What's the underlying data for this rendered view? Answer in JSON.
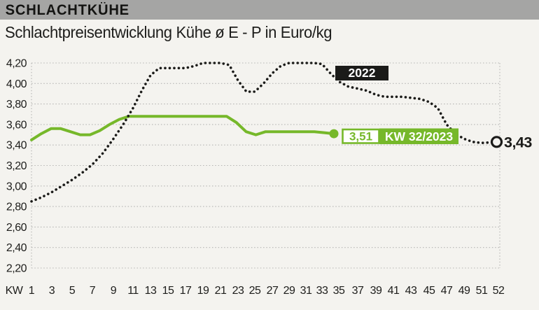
{
  "header": {
    "title": "SCHLACHTKÜHE"
  },
  "subtitle": "Schlachtpreisentwicklung Kühe ø E - P in Euro/kg",
  "colors": {
    "accent_green": "#76b82a",
    "line_black": "#1b1b19",
    "band_gray": "#a5a5a4",
    "background": "#f4f3ef",
    "grid_gray": "#b4b4b2",
    "text": "#1d1d1b"
  },
  "chart_data": {
    "type": "line",
    "title": "Schlachtpreisentwicklung Kühe ø E - P in Euro/kg",
    "xlabel": "KW",
    "ylabel": "Euro/kg",
    "ylim": [
      2.2,
      4.2
    ],
    "grid": true,
    "ytick_labels": [
      "4,20",
      "4,00",
      "3,80",
      "3,60",
      "3,40",
      "3,20",
      "3,00",
      "2,80",
      "2,60",
      "2,40",
      "2,20"
    ],
    "ytick_values": [
      4.2,
      4.0,
      3.8,
      3.6,
      3.4,
      3.2,
      3.0,
      2.8,
      2.6,
      2.4,
      2.2
    ],
    "xaxis_prefix": "KW",
    "xtick_labels": [
      "1",
      "3",
      "5",
      "7",
      "9",
      "11",
      "13",
      "15",
      "17",
      "19",
      "21",
      "23",
      "25",
      "27",
      "29",
      "31",
      "33",
      "35",
      "37",
      "39",
      "41",
      "43",
      "45",
      "47",
      "49",
      "51",
      "52"
    ],
    "xtick_weeks": [
      1,
      3,
      5,
      7,
      9,
      11,
      13,
      15,
      17,
      19,
      21,
      23,
      25,
      27,
      29,
      31,
      33,
      35,
      37,
      39,
      41,
      43,
      45,
      47,
      49,
      51,
      52
    ],
    "series": [
      {
        "name": "2022",
        "style": "dotted",
        "color": "#1b1b19",
        "start_week": 1,
        "values": [
          2.85,
          2.89,
          2.94,
          3.0,
          3.06,
          3.13,
          3.21,
          3.32,
          3.46,
          3.6,
          3.76,
          3.93,
          4.08,
          4.15,
          4.15,
          4.15,
          4.15,
          4.17,
          4.2,
          4.2,
          4.2,
          4.18,
          4.03,
          3.92,
          3.92,
          4.0,
          4.1,
          4.17,
          4.2,
          4.2,
          4.2,
          4.2,
          4.19,
          4.1,
          4.02,
          3.97,
          3.95,
          3.93,
          3.89,
          3.87,
          3.87,
          3.87,
          3.86,
          3.85,
          3.82,
          3.76,
          3.6,
          3.51,
          3.46,
          3.43,
          3.42,
          3.43
        ]
      },
      {
        "name": "2023",
        "style": "solid",
        "color": "#76b82a",
        "start_week": 1,
        "values": [
          3.45,
          3.51,
          3.56,
          3.56,
          3.53,
          3.5,
          3.5,
          3.54,
          3.6,
          3.65,
          3.68,
          3.68,
          3.68,
          3.68,
          3.68,
          3.68,
          3.68,
          3.68,
          3.68,
          3.68,
          3.68,
          3.62,
          3.53,
          3.5,
          3.53,
          3.53,
          3.53,
          3.53,
          3.53,
          3.53,
          3.52,
          3.51
        ]
      }
    ],
    "end_marker_2023": {
      "week": 32,
      "value": 3.51
    },
    "end_marker_2022": {
      "week": 52,
      "value": 3.43
    },
    "annotations": {
      "series_2022_label": "2022",
      "latest_value_label": "3,51",
      "latest_week_label": "KW 32/2023",
      "end_value_2022_label": "3,43"
    }
  }
}
